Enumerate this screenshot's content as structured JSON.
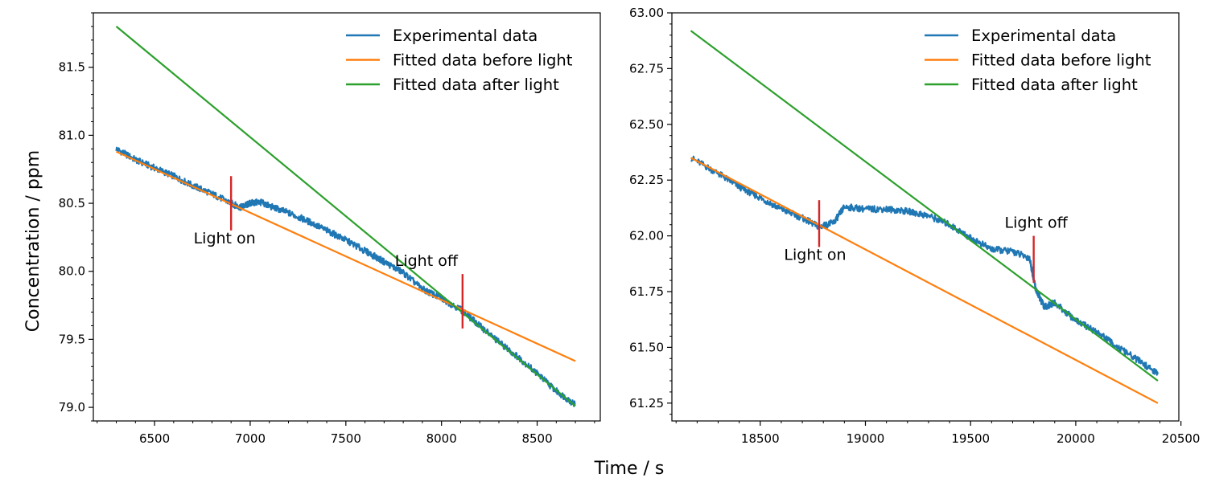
{
  "figure": {
    "xlabel": "Time / s",
    "ylabel": "Concentration / ppm"
  },
  "colors": {
    "experimental": "#1f77b4",
    "before": "#ff7f0e",
    "after": "#2ca02c",
    "marker": "#d62728"
  },
  "chart_data": [
    {
      "type": "line",
      "xlim": [
        6180,
        8830
      ],
      "ylim": [
        78.9,
        81.9
      ],
      "xticks": [
        6500,
        7000,
        7500,
        8000,
        8500
      ],
      "xtick_labels": [
        "6500",
        "7000",
        "7500",
        "8000",
        "8500"
      ],
      "yticks": [
        79.0,
        79.5,
        80.0,
        80.5,
        81.0,
        81.5
      ],
      "ytick_labels": [
        "79.0",
        "79.5",
        "80.0",
        "80.5",
        "81.0",
        "81.5"
      ],
      "legend_position": "top-right",
      "series": [
        {
          "name": "Experimental data",
          "color_key": "experimental",
          "x": [
            6300,
            6400,
            6500,
            6600,
            6700,
            6800,
            6900,
            6950,
            7000,
            7050,
            7100,
            7200,
            7300,
            7400,
            7500,
            7600,
            7700,
            7800,
            7900,
            8000,
            8100,
            8200,
            8300,
            8400,
            8500,
            8600,
            8700
          ],
          "y": [
            80.9,
            80.82,
            80.76,
            80.7,
            80.63,
            80.57,
            80.5,
            80.47,
            80.5,
            80.51,
            80.48,
            80.43,
            80.37,
            80.3,
            80.23,
            80.15,
            80.07,
            79.99,
            79.87,
            79.8,
            79.72,
            79.6,
            79.48,
            79.37,
            79.25,
            79.12,
            79.02
          ]
        },
        {
          "name": "Fitted data before light",
          "color_key": "before",
          "x": [
            6300,
            8700
          ],
          "y": [
            80.88,
            79.34
          ]
        },
        {
          "name": "Fitted data after light",
          "color_key": "after",
          "x": [
            6300,
            8700
          ],
          "y": [
            81.8,
            79.01
          ]
        }
      ],
      "markers": [
        {
          "label": "Light on",
          "x": 6900,
          "y_range": [
            80.3,
            80.7
          ]
        },
        {
          "label": "Light off",
          "x": 8110,
          "y_range": [
            79.58,
            79.98
          ]
        }
      ]
    },
    {
      "type": "line",
      "xlim": [
        18080,
        20490
      ],
      "ylim": [
        61.17,
        63.0
      ],
      "xticks": [
        18500,
        19000,
        19500,
        20000,
        20500
      ],
      "xtick_labels": [
        "18500",
        "19000",
        "19500",
        "20000",
        "20500"
      ],
      "yticks": [
        61.25,
        61.5,
        61.75,
        62.0,
        62.25,
        62.5,
        62.75,
        63.0
      ],
      "ytick_labels": [
        "61.25",
        "61.50",
        "61.75",
        "62.00",
        "62.25",
        "62.50",
        "62.75",
        "63.00"
      ],
      "legend_position": "top-right",
      "series": [
        {
          "name": "Experimental data",
          "color_key": "experimental",
          "x": [
            18170,
            18300,
            18400,
            18500,
            18600,
            18700,
            18780,
            18850,
            18900,
            19000,
            19100,
            19200,
            19300,
            19400,
            19500,
            19600,
            19700,
            19780,
            19810,
            19850,
            19900,
            20000,
            20100,
            20200,
            20300,
            20390
          ],
          "y": [
            62.35,
            62.28,
            62.22,
            62.17,
            62.12,
            62.08,
            62.04,
            62.06,
            62.13,
            62.12,
            62.12,
            62.11,
            62.09,
            62.05,
            61.99,
            61.94,
            61.93,
            61.9,
            61.76,
            61.68,
            61.7,
            61.62,
            61.57,
            61.5,
            61.44,
            61.38
          ]
        },
        {
          "name": "Fitted data before light",
          "color_key": "before",
          "x": [
            18170,
            20390
          ],
          "y": [
            62.35,
            61.25
          ]
        },
        {
          "name": "Fitted data after light",
          "color_key": "after",
          "x": [
            18170,
            20390
          ],
          "y": [
            62.92,
            61.35
          ]
        }
      ],
      "markers": [
        {
          "label": "Light on",
          "x": 18780,
          "y_range": [
            61.95,
            62.16
          ]
        },
        {
          "label": "Light off",
          "x": 19800,
          "y_range": [
            61.79,
            62.0
          ]
        }
      ]
    }
  ]
}
